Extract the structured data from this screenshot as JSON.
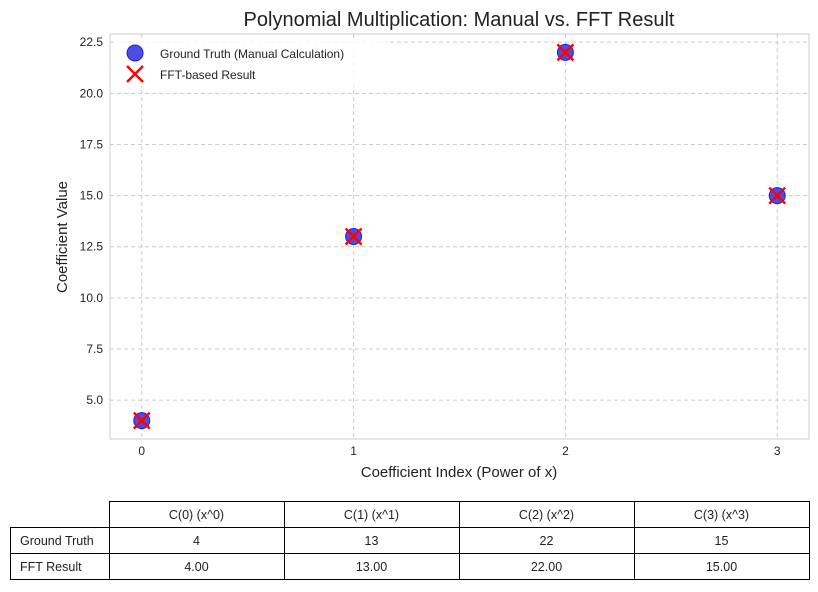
{
  "chart_data": {
    "type": "scatter",
    "title": "Polynomial Multiplication: Manual vs. FFT Result",
    "xlabel": "Coefficient Index (Power of x)",
    "ylabel": "Coefficient Value",
    "xlim": [
      -0.15,
      3.15
    ],
    "ylim": [
      3.1,
      22.9
    ],
    "xticks": [
      0,
      1,
      2,
      3
    ],
    "yticks": [
      5.0,
      7.5,
      10.0,
      12.5,
      15.0,
      17.5,
      20.0,
      22.5
    ],
    "grid": true,
    "legend_position": "top-left",
    "series": [
      {
        "name": "Ground Truth (Manual Calculation)",
        "marker": "circle",
        "color": "#2020e0",
        "x": [
          0,
          1,
          2,
          3
        ],
        "y": [
          4,
          13,
          22,
          15
        ]
      },
      {
        "name": "FFT-based Result",
        "marker": "x",
        "color": "#ff0000",
        "x": [
          0,
          1,
          2,
          3
        ],
        "y": [
          4.0,
          13.0,
          22.0,
          15.0
        ]
      }
    ]
  },
  "table": {
    "columns": [
      "C(0) (x^0)",
      "C(1) (x^1)",
      "C(2) (x^2)",
      "C(3) (x^3)"
    ],
    "rows": [
      {
        "label": "Ground Truth",
        "cells": [
          "4",
          "13",
          "22",
          "15"
        ]
      },
      {
        "label": "FFT Result",
        "cells": [
          "4.00",
          "13.00",
          "22.00",
          "15.00"
        ]
      }
    ]
  }
}
